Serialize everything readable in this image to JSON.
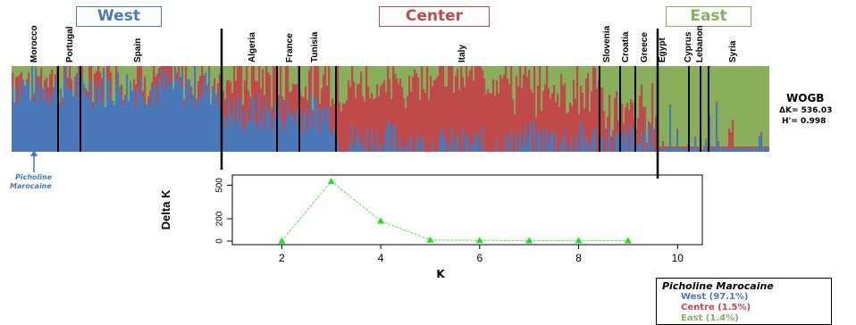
{
  "regions": {
    "west": "West",
    "center": "Center",
    "east": "East"
  },
  "countries": [
    "Morocco",
    "Portugal",
    "Spain",
    "Algeria",
    "France",
    "Tunisia",
    "Italy",
    "Slovenia",
    "Croatia",
    "Greece",
    "Egypt",
    "Cyprus",
    "Lebanon",
    "Syria"
  ],
  "stats": {
    "name": "WOGB",
    "delta_k": "ΔK= 536.03",
    "h": "H'= 0.998"
  },
  "annotation": {
    "line1": "Picholine",
    "line2": "Marocaine"
  },
  "legend": {
    "title": "Picholine Marocaine",
    "rows": [
      {
        "label": "West (97.1%)",
        "color": "#4a78b8"
      },
      {
        "label": "Centre (1.5%)",
        "color": "#c04a4a"
      },
      {
        "label": "East (1.4%)",
        "color": "#88b05c"
      }
    ]
  },
  "colors": {
    "west": "#4a78b8",
    "center": "#c04a4a",
    "east": "#88b05c",
    "line": "#66ee66",
    "point": "#22dd22"
  },
  "chart_data": {
    "type": "line",
    "x": [
      2,
      3,
      4,
      5,
      6,
      7,
      8,
      9
    ],
    "y": [
      2,
      536.03,
      180,
      10,
      6,
      4,
      4,
      4
    ],
    "xlabel": "K",
    "ylabel": "Delta K",
    "xlim": [
      1,
      10.5
    ],
    "ylim": [
      0,
      560
    ],
    "xticks": [
      2,
      4,
      6,
      8,
      10
    ],
    "yticks": [
      0,
      200,
      500
    ],
    "grid": false
  }
}
